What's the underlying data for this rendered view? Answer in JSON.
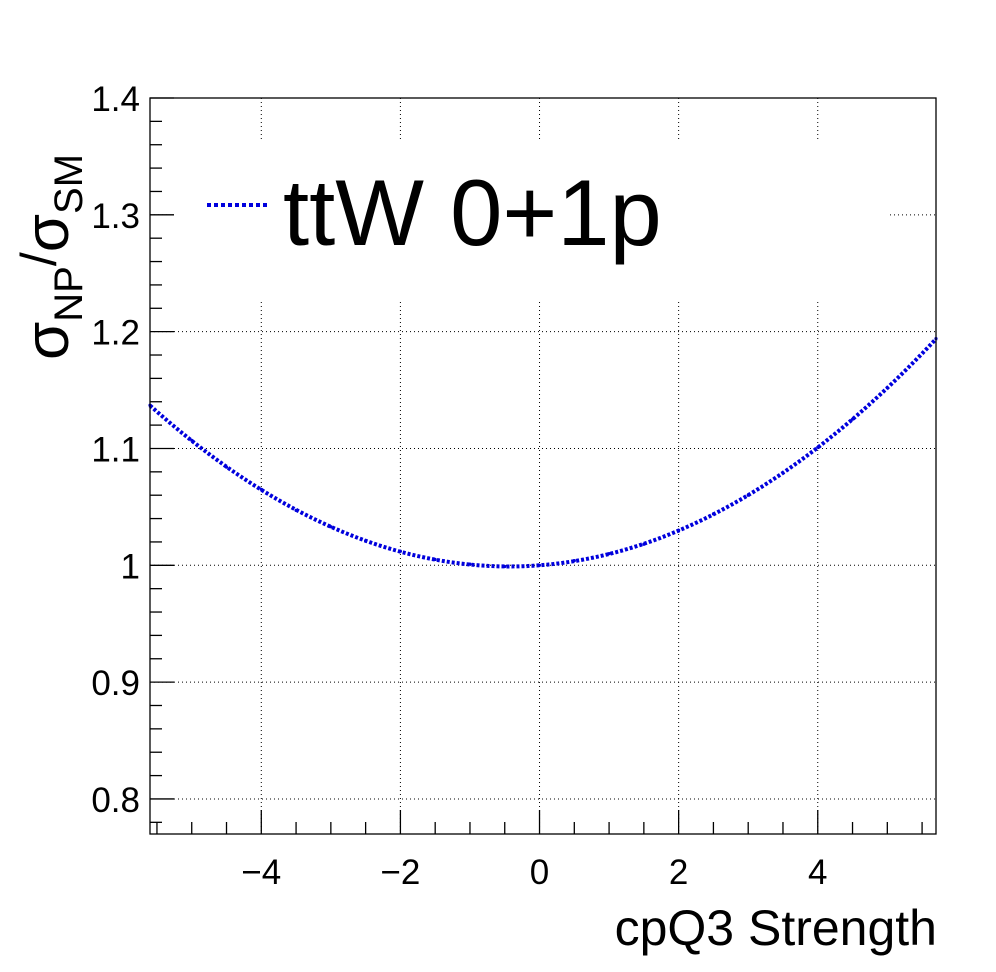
{
  "chart_data": {
    "type": "line",
    "title": "",
    "xlabel": "cpQ3 Strength",
    "ylabel": "σ_NP/σ_SM",
    "ylabel_parts": {
      "sym1": "σ",
      "sub1": "NP",
      "slash": "/",
      "sym2": "σ",
      "sub2": "SM"
    },
    "xlim": [
      -5.6,
      5.7
    ],
    "ylim": [
      0.77,
      1.4
    ],
    "x_ticks": [
      -4,
      -2,
      0,
      2,
      4
    ],
    "x_tick_labels": [
      "−4",
      "−2",
      "0",
      "2",
      "4"
    ],
    "y_ticks": [
      0.8,
      0.9,
      1.0,
      1.1,
      1.2,
      1.3,
      1.4
    ],
    "y_tick_labels": [
      "0.8",
      "0.9",
      "1",
      "1.1",
      "1.2",
      "1.3",
      "1.4"
    ],
    "grid": true,
    "legend_position": "top-left",
    "series": [
      {
        "name": "ttW 0+1p",
        "color": "#0000dd",
        "line_style": "dotted",
        "quadratic_fit": {
          "a": 0.00517,
          "b": 0.00452,
          "c": 1.0
        },
        "x": [
          -5.6,
          -5.0,
          -4.5,
          -4.0,
          -3.5,
          -3.0,
          -2.5,
          -2.0,
          -1.5,
          -1.0,
          -0.5,
          0.0,
          0.5,
          1.0,
          1.5,
          2.0,
          2.5,
          3.0,
          3.5,
          4.0,
          4.5,
          5.0,
          5.7
        ],
        "y": [
          1.137,
          1.107,
          1.084,
          1.065,
          1.047,
          1.033,
          1.021,
          1.012,
          1.005,
          1.001,
          0.999,
          1.0,
          1.004,
          1.01,
          1.018,
          1.03,
          1.044,
          1.06,
          1.079,
          1.101,
          1.125,
          1.152,
          1.194
        ]
      }
    ]
  }
}
